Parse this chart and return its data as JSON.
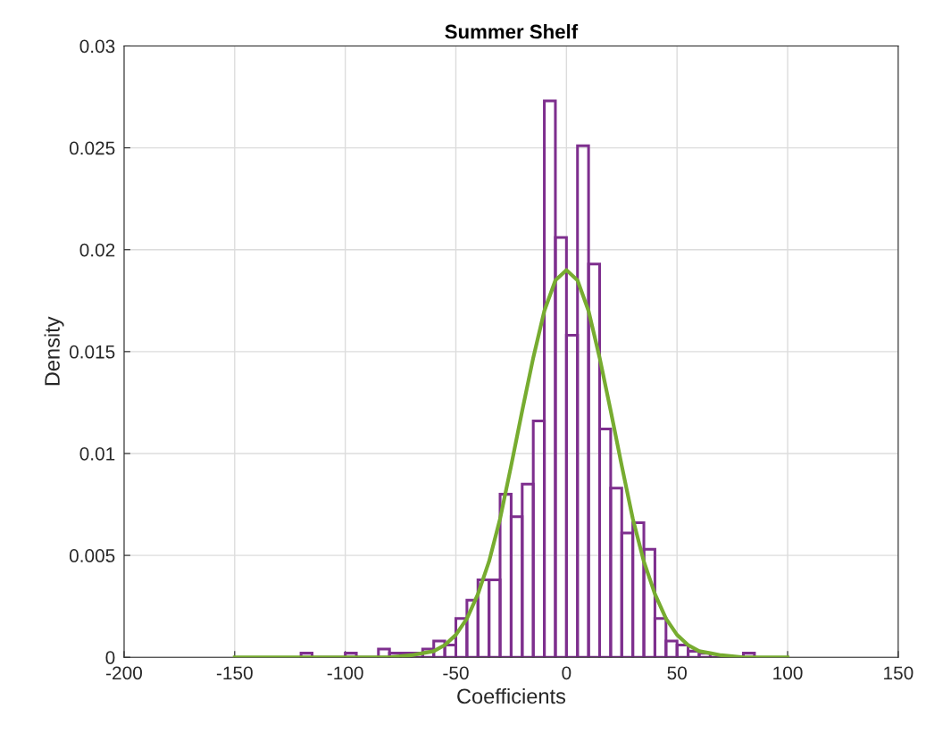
{
  "chart_data": {
    "type": "histogram",
    "title": "Summer Shelf",
    "xlabel": "Coefficients",
    "ylabel": "Density",
    "xlim": [
      -200,
      150
    ],
    "xticks": [
      -200,
      -150,
      -100,
      -50,
      0,
      50,
      100,
      150
    ],
    "ylim": [
      0,
      0.03
    ],
    "yticks": [
      0,
      0.005,
      0.01,
      0.015,
      0.02,
      0.025,
      0.03
    ],
    "grid": true,
    "series": [
      {
        "type": "histogram",
        "color": "#7e2f8e",
        "bins": [
          -120,
          -115,
          -110,
          -105,
          -100,
          -95,
          -90,
          -85,
          -80,
          -75,
          -70,
          -65,
          -60,
          -55,
          -50,
          -45,
          -40,
          -35,
          -30,
          -25,
          -20,
          -15,
          -10,
          -5,
          0,
          5,
          10,
          15,
          20,
          25,
          30,
          35,
          40,
          45,
          50,
          55,
          60,
          65,
          70,
          75,
          80,
          85
        ],
        "values": [
          0.0002,
          0,
          0,
          0,
          0.0002,
          0,
          0,
          0.0004,
          0.0002,
          0.0002,
          0.0002,
          0.0004,
          0.0008,
          0.0006,
          0.0019,
          0.0028,
          0.0038,
          0.0038,
          0.008,
          0.0069,
          0.0085,
          0.0116,
          0.0273,
          0.0206,
          0.0158,
          0.0251,
          0.0193,
          0.0112,
          0.0083,
          0.0061,
          0.0066,
          0.0053,
          0.0019,
          0.0008,
          0.0006,
          0.0003,
          0.0002,
          0,
          0,
          0,
          0.0002
        ]
      },
      {
        "type": "line",
        "color": "#77ac30",
        "x": [
          -150,
          -100,
          -80,
          -70,
          -65,
          -60,
          -55,
          -50,
          -45,
          -40,
          -35,
          -30,
          -25,
          -20,
          -15,
          -10,
          -5,
          0,
          5,
          10,
          15,
          20,
          25,
          30,
          35,
          40,
          45,
          50,
          55,
          60,
          65,
          70,
          80,
          100
        ],
        "values": [
          0,
          0,
          0,
          0.0001,
          0.0002,
          0.0003,
          0.0006,
          0.0011,
          0.0019,
          0.0031,
          0.0047,
          0.0068,
          0.0094,
          0.0121,
          0.0147,
          0.017,
          0.0185,
          0.019,
          0.0185,
          0.017,
          0.0147,
          0.0121,
          0.0094,
          0.0068,
          0.0047,
          0.0031,
          0.0019,
          0.0011,
          0.0006,
          0.0003,
          0.0002,
          0.0001,
          0,
          0
        ]
      }
    ]
  }
}
